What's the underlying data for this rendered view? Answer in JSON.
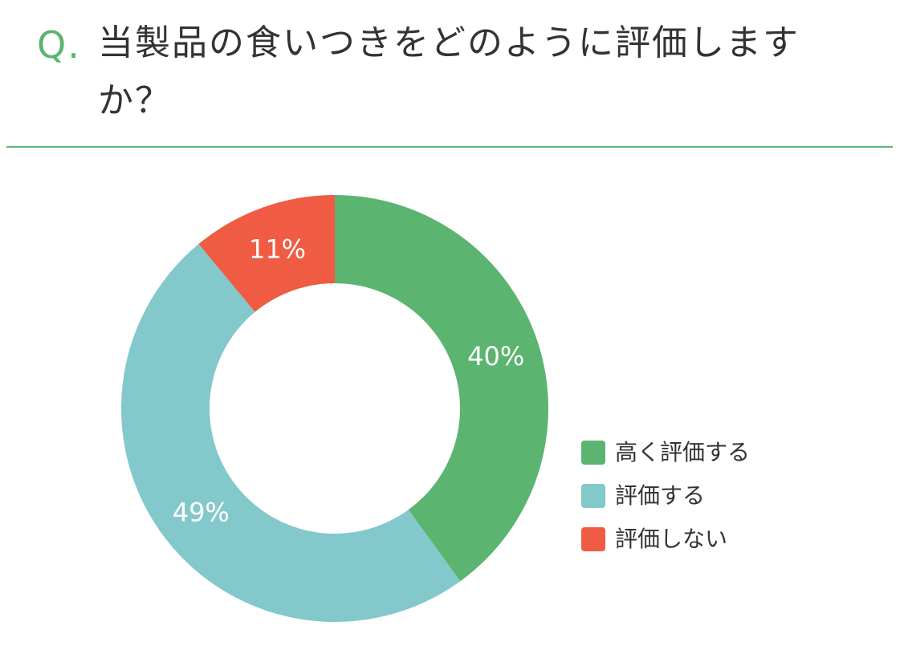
{
  "header": {
    "q_mark": "Q.",
    "question": "当製品の食いつきをどのように評価しますか？"
  },
  "colors": {
    "accent": "#5bb46f",
    "high": "#5bb46f",
    "mid": "#83c8cb",
    "low": "#ef5c43"
  },
  "chart_data": {
    "type": "pie",
    "donut": true,
    "title": "",
    "categories": [
      "高く評価する",
      "評価する",
      "評価しない"
    ],
    "values": [
      40,
      49,
      11
    ],
    "labels": [
      "40%",
      "49%",
      "11%"
    ],
    "colors": [
      "#5bb46f",
      "#83c8cb",
      "#ef5c43"
    ],
    "start": "top, clockwise",
    "legend": "right"
  },
  "legend": {
    "items": [
      {
        "label": "高く評価する",
        "color": "#5bb46f"
      },
      {
        "label": "評価する",
        "color": "#83c8cb"
      },
      {
        "label": "評価しない",
        "color": "#ef5c43"
      }
    ]
  }
}
